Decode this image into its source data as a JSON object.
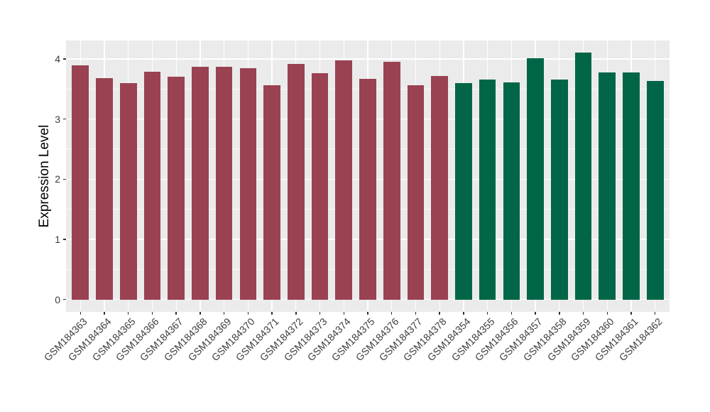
{
  "chart_data": {
    "type": "bar",
    "title": "",
    "xlabel": "",
    "ylabel": "Expression Level",
    "categories": [
      "GSM184363",
      "GSM184364",
      "GSM184365",
      "GSM184366",
      "GSM184367",
      "GSM184368",
      "GSM184369",
      "GSM184370",
      "GSM184371",
      "GSM184372",
      "GSM184373",
      "GSM184374",
      "GSM184375",
      "GSM184376",
      "GSM184377",
      "GSM184378",
      "GSM184354",
      "GSM184355",
      "GSM184356",
      "GSM184357",
      "GSM184358",
      "GSM184359",
      "GSM184360",
      "GSM184361",
      "GSM184362"
    ],
    "values": [
      3.89,
      3.68,
      3.6,
      3.78,
      3.7,
      3.87,
      3.87,
      3.84,
      3.56,
      3.91,
      3.76,
      3.97,
      3.67,
      3.95,
      3.56,
      3.72,
      3.6,
      3.66,
      3.61,
      4.01,
      3.66,
      4.1,
      3.77,
      3.77,
      3.63
    ],
    "bar_groups": [
      "group1",
      "group1",
      "group1",
      "group1",
      "group1",
      "group1",
      "group1",
      "group1",
      "group1",
      "group1",
      "group1",
      "group1",
      "group1",
      "group1",
      "group1",
      "group1",
      "group2",
      "group2",
      "group2",
      "group2",
      "group2",
      "group2",
      "group2",
      "group2",
      "group2"
    ],
    "group_colors": {
      "group1": "#9A4252",
      "group2": "#006647"
    },
    "y_ticks": [
      0,
      1,
      2,
      3,
      4
    ],
    "y_tick_labels": [
      "0",
      "1",
      "2",
      "3",
      "4"
    ],
    "y_minor_ticks": [
      0.5,
      1.5,
      2.5,
      3.5
    ],
    "ylim": [
      -0.205,
      4.305
    ],
    "x_label_angle": 45,
    "grid": "on",
    "legend_position": "none",
    "panel_background": "#EBEBEB",
    "grid_color": "#FFFFFF",
    "axis_text_color": "#3c3c3c",
    "axis_title_color": "#000000",
    "bar_width_fraction": 0.7
  }
}
